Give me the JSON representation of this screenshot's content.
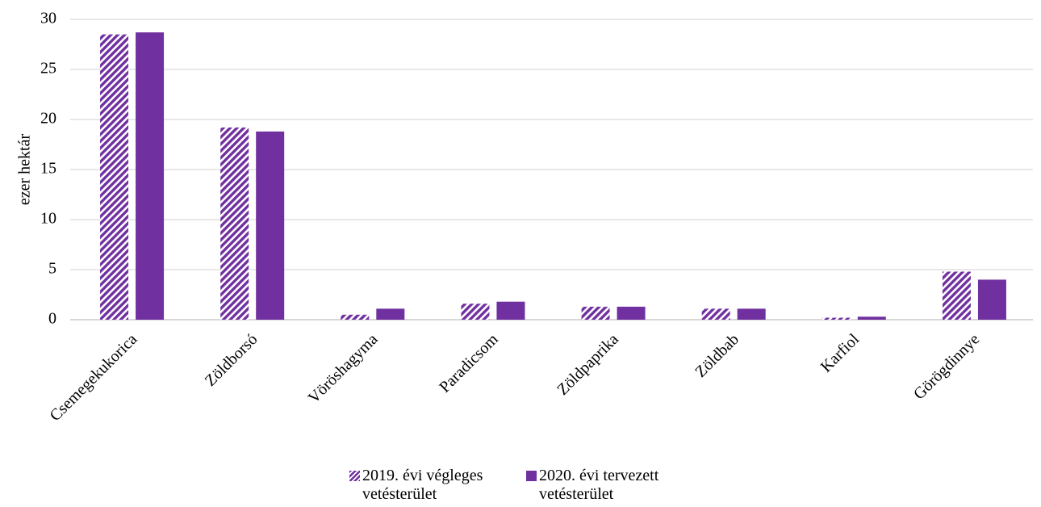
{
  "chart_data": {
    "type": "bar",
    "y_label": "ezer hektár",
    "categories": [
      "Csemegekukorica",
      "Zöldborsó",
      "Vöröshagyma",
      "Paradicsom",
      "Zöldpaprika",
      "Zöldbab",
      "Karfiol",
      "Görögdinnye"
    ],
    "series": [
      {
        "name": "2019. évi végleges vetésterület",
        "color": "#7030a0",
        "pattern": "diagonal-stripes",
        "values": [
          28.5,
          19.2,
          0.5,
          1.6,
          1.3,
          1.1,
          0.2,
          4.8
        ]
      },
      {
        "name": "2020. évi tervezett vetésterület",
        "color": "#7030a0",
        "pattern": "solid",
        "values": [
          28.7,
          18.8,
          1.1,
          1.8,
          1.3,
          1.1,
          0.3,
          4.0
        ]
      }
    ],
    "ylim": [
      0,
      30
    ],
    "yticks": [
      0,
      5,
      10,
      15,
      20,
      25,
      30
    ],
    "grid": true,
    "legend": "bottom"
  }
}
